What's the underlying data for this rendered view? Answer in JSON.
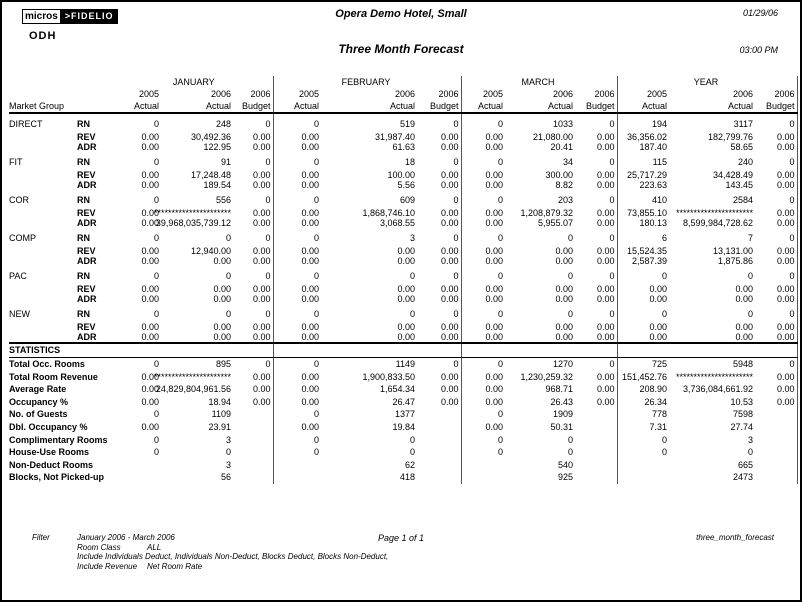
{
  "header": {
    "logo": {
      "micros": "micros",
      "fidelio": ">FIDELIO"
    },
    "property_code": "ODH",
    "hotel_name": "Opera Demo Hotel, Small",
    "report_title": "Three Month Forecast",
    "date": "01/29/06",
    "time": "03:00 PM"
  },
  "table": {
    "market_group_label": "Market Group",
    "sections": [
      "JANUARY",
      "FEBRUARY",
      "MARCH",
      "YEAR"
    ],
    "years": [
      "2005",
      "2006",
      "2006"
    ],
    "types": [
      "Actual",
      "Actual",
      "Budget"
    ],
    "groups": [
      {
        "name": "DIRECT",
        "rows": [
          {
            "label": "RN",
            "values": [
              "0",
              "248",
              "0",
              "0",
              "519",
              "0",
              "0",
              "1033",
              "0",
              "194",
              "3117",
              "0"
            ]
          },
          {
            "label": "REV",
            "values": [
              "0.00",
              "30,492.36",
              "0.00",
              "0.00",
              "31,987.40",
              "0.00",
              "0.00",
              "21,080.00",
              "0.00",
              "36,356.02",
              "182,799.76",
              "0.00"
            ]
          },
          {
            "label": "ADR",
            "values": [
              "0.00",
              "122.95",
              "0.00",
              "0.00",
              "61.63",
              "0.00",
              "0.00",
              "20.41",
              "0.00",
              "187.40",
              "58.65",
              "0.00"
            ]
          }
        ]
      },
      {
        "name": "FIT",
        "rows": [
          {
            "label": "RN",
            "values": [
              "0",
              "91",
              "0",
              "0",
              "18",
              "0",
              "0",
              "34",
              "0",
              "115",
              "240",
              "0"
            ]
          },
          {
            "label": "REV",
            "values": [
              "0.00",
              "17,248.48",
              "0.00",
              "0.00",
              "100.00",
              "0.00",
              "0.00",
              "300.00",
              "0.00",
              "25,717.29",
              "34,428.49",
              "0.00"
            ]
          },
          {
            "label": "ADR",
            "values": [
              "0.00",
              "189.54",
              "0.00",
              "0.00",
              "5.56",
              "0.00",
              "0.00",
              "8.82",
              "0.00",
              "223.63",
              "143.45",
              "0.00"
            ]
          }
        ]
      },
      {
        "name": "COR",
        "rows": [
          {
            "label": "RN",
            "values": [
              "0",
              "556",
              "0",
              "0",
              "609",
              "0",
              "0",
              "203",
              "0",
              "410",
              "2584",
              "0"
            ]
          },
          {
            "label": "REV",
            "values": [
              "0.00",
              "**********************",
              "0.00",
              "0.00",
              "1,868,746.10",
              "0.00",
              "0.00",
              "1,208,879.32",
              "0.00",
              "73,855.10",
              "**********************",
              "0.00"
            ]
          },
          {
            "label": "ADR",
            "values": [
              "0.00",
              "39,968,035,739.12",
              "0.00",
              "0.00",
              "3,068.55",
              "0.00",
              "0.00",
              "5,955.07",
              "0.00",
              "180.13",
              "8,599,984,728.62",
              "0.00"
            ]
          }
        ]
      },
      {
        "name": "COMP",
        "rows": [
          {
            "label": "RN",
            "values": [
              "0",
              "0",
              "0",
              "0",
              "3",
              "0",
              "0",
              "0",
              "0",
              "6",
              "7",
              "0"
            ]
          },
          {
            "label": "REV",
            "values": [
              "0.00",
              "12,940.00",
              "0.00",
              "0.00",
              "0.00",
              "0.00",
              "0.00",
              "0.00",
              "0.00",
              "15,524.35",
              "13,131.00",
              "0.00"
            ]
          },
          {
            "label": "ADR",
            "values": [
              "0.00",
              "0.00",
              "0.00",
              "0.00",
              "0.00",
              "0.00",
              "0.00",
              "0.00",
              "0.00",
              "2,587.39",
              "1,875.86",
              "0.00"
            ]
          }
        ]
      },
      {
        "name": "PAC",
        "rows": [
          {
            "label": "RN",
            "values": [
              "0",
              "0",
              "0",
              "0",
              "0",
              "0",
              "0",
              "0",
              "0",
              "0",
              "0",
              "0"
            ]
          },
          {
            "label": "REV",
            "values": [
              "0.00",
              "0.00",
              "0.00",
              "0.00",
              "0.00",
              "0.00",
              "0.00",
              "0.00",
              "0.00",
              "0.00",
              "0.00",
              "0.00"
            ]
          },
          {
            "label": "ADR",
            "values": [
              "0.00",
              "0.00",
              "0.00",
              "0.00",
              "0.00",
              "0.00",
              "0.00",
              "0.00",
              "0.00",
              "0.00",
              "0.00",
              "0.00"
            ]
          }
        ]
      },
      {
        "name": "NEW",
        "rows": [
          {
            "label": "RN",
            "values": [
              "0",
              "0",
              "0",
              "0",
              "0",
              "0",
              "0",
              "0",
              "0",
              "0",
              "0",
              "0"
            ]
          },
          {
            "label": "REV",
            "values": [
              "0.00",
              "0.00",
              "0.00",
              "0.00",
              "0.00",
              "0.00",
              "0.00",
              "0.00",
              "0.00",
              "0.00",
              "0.00",
              "0.00"
            ]
          },
          {
            "label": "ADR",
            "values": [
              "0.00",
              "0.00",
              "0.00",
              "0.00",
              "0.00",
              "0.00",
              "0.00",
              "0.00",
              "0.00",
              "0.00",
              "0.00",
              "0.00"
            ]
          }
        ]
      }
    ],
    "statistics_label": "STATISTICS",
    "statistics": [
      {
        "label": "Total Occ. Rooms",
        "values": [
          "0",
          "895",
          "0",
          "0",
          "1149",
          "0",
          "0",
          "1270",
          "0",
          "725",
          "5948",
          "0"
        ]
      },
      {
        "label": "Total Room Revenue",
        "values": [
          "0.00",
          "**********************",
          "0.00",
          "0.00",
          "1,900,833.50",
          "0.00",
          "0.00",
          "1,230,259.32",
          "0.00",
          "151,452.76",
          "**********************",
          "0.00"
        ]
      },
      {
        "label": "Average Rate",
        "values": [
          "0.00",
          "24,829,804,961.56",
          "0.00",
          "0.00",
          "1,654.34",
          "0.00",
          "0.00",
          "968.71",
          "0.00",
          "208.90",
          "3,736,084,661.92",
          "0.00"
        ]
      },
      {
        "label": "Occupancy %",
        "values": [
          "0.00",
          "18.94",
          "0.00",
          "0.00",
          "26.47",
          "0.00",
          "0.00",
          "26.43",
          "0.00",
          "26.34",
          "10.53",
          "0.00"
        ]
      },
      {
        "label": "No. of Guests",
        "values": [
          "0",
          "1109",
          "",
          "0",
          "1377",
          "",
          "0",
          "1909",
          "",
          "778",
          "7598",
          ""
        ]
      },
      {
        "label": "Dbl. Occupancy %",
        "values": [
          "0.00",
          "23.91",
          "",
          "0.00",
          "19.84",
          "",
          "0.00",
          "50.31",
          "",
          "7.31",
          "27.74",
          ""
        ]
      },
      {
        "label": "Complimentary Rooms",
        "values": [
          "0",
          "3",
          "",
          "0",
          "0",
          "",
          "0",
          "0",
          "",
          "0",
          "3",
          ""
        ]
      },
      {
        "label": "House-Use Rooms",
        "values": [
          "0",
          "0",
          "",
          "0",
          "0",
          "",
          "0",
          "0",
          "",
          "0",
          "0",
          ""
        ]
      },
      {
        "label": "Non-Deduct Rooms",
        "values": [
          "",
          "3",
          "",
          "",
          "62",
          "",
          "",
          "540",
          "",
          "",
          "665",
          ""
        ]
      },
      {
        "label": "Blocks, Not Picked-up",
        "values": [
          "",
          "56",
          "",
          "",
          "418",
          "",
          "",
          "925",
          "",
          "",
          "2473",
          ""
        ]
      }
    ]
  },
  "footer": {
    "filter_label": "Filter",
    "filter_period": "January 2006 - March 2006",
    "room_class_label": "Room Class",
    "room_class_value": "ALL",
    "include_line": "Include Individuals Deduct, Individuals Non-Deduct, Blocks Deduct, Blocks Non-Deduct,",
    "include_revenue_label": "Include Revenue",
    "include_revenue_value": "Net Room Rate",
    "page_indicator": "Page 1 of 1",
    "report_name": "three_month_forecast"
  }
}
